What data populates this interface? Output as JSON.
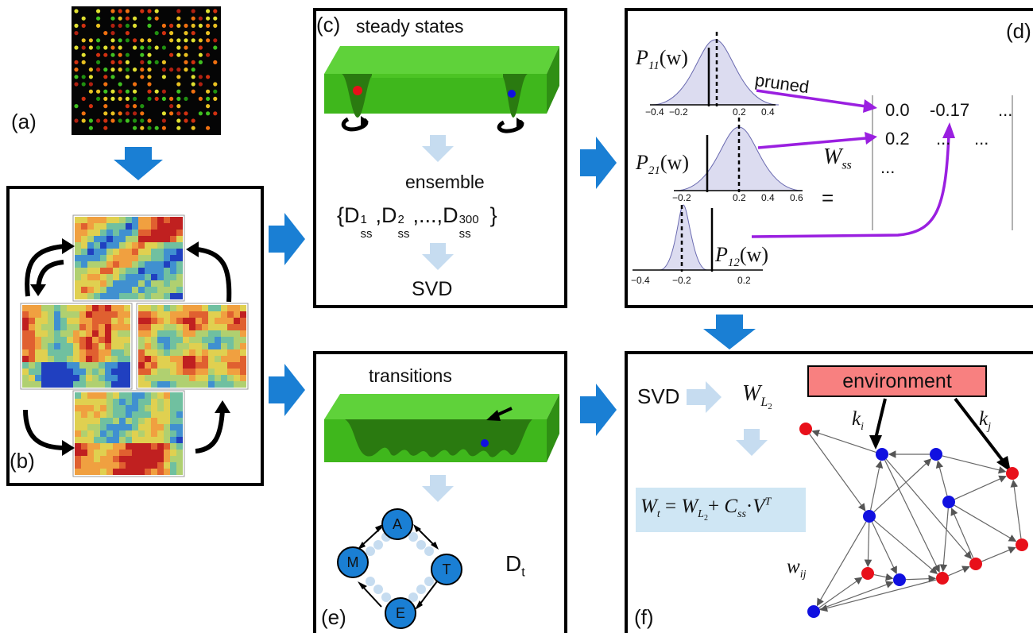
{
  "labels": {
    "a": "(a)",
    "b": "(b)",
    "c": "(c)",
    "d": "(d)",
    "e": "(e)",
    "f": "(f)"
  },
  "panel_c": {
    "title": "steady states",
    "ensemble": "ensemble",
    "ensemble_base": "D",
    "ens_sub": "ss",
    "ens_sup1": "1",
    "ens_sup2": "2",
    "ens_sup3": "300",
    "ens_open": "{",
    "ens_comma": ",",
    "ens_dots": ",...,",
    "ens_close": "}",
    "svd": "SVD"
  },
  "panel_d": {
    "p11": "P",
    "p11_sub": "11",
    "p21": "P",
    "p21_sub": "21",
    "p12": "P",
    "p12_sub": "12",
    "w_arg": "(w)",
    "ticks1": [
      "−0.4",
      "−0.2",
      "0.2",
      "0.4"
    ],
    "ticks2": [
      "−0.2",
      "0.2",
      "0.4",
      "0.6"
    ],
    "ticks3": [
      "−0.4",
      "−0.2",
      "0.2"
    ],
    "pruned": "pruned",
    "wss": "W",
    "wss_sub": "ss",
    "equals": "=",
    "row1": [
      "0.0",
      "-0.17",
      "..."
    ],
    "row2": [
      "0.2",
      "...",
      "..."
    ],
    "row3": "..."
  },
  "panel_e": {
    "title": "transitions",
    "nodes": [
      "A",
      "T",
      "E",
      "M"
    ],
    "dt": "D",
    "dt_sub": "t"
  },
  "panel_f": {
    "svd": "SVD",
    "wl2": "W",
    "wl2_sub": "L",
    "wl2_subsub": "2",
    "environment": "environment",
    "ki": "k",
    "ki_sub": "i",
    "kj": "k",
    "kj_sub": "j",
    "wij": "w",
    "wij_sub": "ij",
    "formula": {
      "wt": "W",
      "wt_sub": "t",
      "eq": " = ",
      "wl": "W",
      "wl_sub": "L",
      "wl_subsub": "2",
      "plus": "+ ",
      "c": "C",
      "c_sub": "ss",
      "dot": "·",
      "v": "V",
      "v_sup": "T"
    }
  },
  "colors": {
    "arrow_blue": "#1a7fd4",
    "light_arrow": "#c6dcf0",
    "purple": "#9a1fe0",
    "green": "#3fbf1a",
    "node_red": "#e8101a",
    "node_blue": "#1010e0",
    "env_fill": "#f88080",
    "formula_bg": "#cfe6f4",
    "node_fill": "#1a7fd4"
  }
}
